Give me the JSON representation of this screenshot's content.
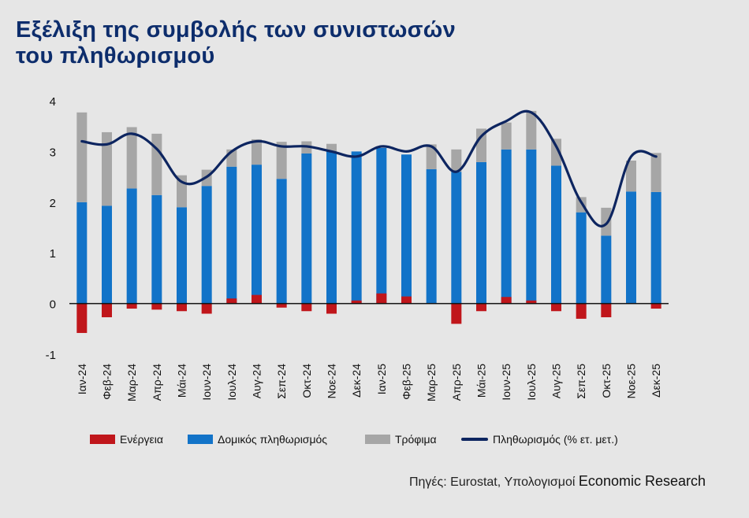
{
  "title": {
    "line1": "Εξέλιξη της συμβολής των συνιστωσών",
    "line2": "του πληθωρισμού"
  },
  "source": {
    "label": "Πηγές: Eurostat, Υπολογισμοί",
    "bold": "Economic Research"
  },
  "colors": {
    "energy": "#c0161b",
    "core": "#1273c8",
    "food": "#a6a6a6",
    "inflation": "#0d2560",
    "title": "#0d2d6c"
  },
  "chart_data": {
    "type": "bar",
    "stacked": true,
    "categories": [
      "Ιαν-24",
      "Φεβ-24",
      "Μαρ-24",
      "Απρ-24",
      "Μάι-24",
      "Ιουν-24",
      "Ιουλ-24",
      "Αυγ-24",
      "Σεπ-24",
      "Οκτ-24",
      "Νοε-24",
      "Δεκ-24",
      "Ιαν-25",
      "Φεβ-25",
      "Μαρ-25",
      "Απρ-25",
      "Μάι-25",
      "Ιουν-25",
      "Ιουλ-25",
      "Αυγ-25",
      "Σεπ-25",
      "Οκτ-25",
      "Νοε-25",
      "Δεκ-25"
    ],
    "series": [
      {
        "name": "Ενέργεια",
        "type": "bar",
        "values": [
          -0.58,
          -0.27,
          -0.1,
          -0.12,
          -0.15,
          -0.2,
          0.1,
          0.17,
          -0.08,
          -0.15,
          -0.2,
          0.06,
          0.2,
          0.14,
          0.0,
          -0.4,
          -0.15,
          0.13,
          0.06,
          -0.15,
          -0.3,
          -0.27,
          0.0,
          -0.1
        ]
      },
      {
        "name": "Δομικός πληθωρισμός",
        "type": "bar",
        "values": [
          2.0,
          1.93,
          2.27,
          2.14,
          1.9,
          2.32,
          2.7,
          2.74,
          2.46,
          2.96,
          3.0,
          3.0,
          3.07,
          2.94,
          2.65,
          2.6,
          2.79,
          3.04,
          3.04,
          2.72,
          1.8,
          1.34,
          2.21,
          2.2
        ]
      },
      {
        "name": "Τρόφιμα",
        "type": "bar",
        "values": [
          1.77,
          1.45,
          1.21,
          1.21,
          0.63,
          0.32,
          0.34,
          0.5,
          0.73,
          0.24,
          0.15,
          0.0,
          0.0,
          0.0,
          0.49,
          0.44,
          0.66,
          0.53,
          0.76,
          0.53,
          0.3,
          0.55,
          0.61,
          0.77
        ]
      },
      {
        "name": "Πληθωρισμός (% ετ. μετ.)",
        "type": "line",
        "values": [
          3.2,
          3.14,
          3.35,
          3.05,
          2.4,
          2.5,
          3.0,
          3.2,
          3.1,
          3.1,
          3.0,
          2.9,
          3.1,
          3.0,
          3.1,
          2.6,
          3.3,
          3.6,
          3.77,
          3.1,
          2.0,
          1.57,
          2.9,
          2.9
        ]
      }
    ],
    "title": "Εξέλιξη της συμβολής των συνιστωσών του πληθωρισμού",
    "xlabel": "",
    "ylabel": "",
    "ylim": [
      -1,
      4
    ],
    "yticks": [
      "-1",
      "0",
      "1",
      "2",
      "3",
      "4"
    ],
    "legend_position": "bottom",
    "grid": false
  }
}
